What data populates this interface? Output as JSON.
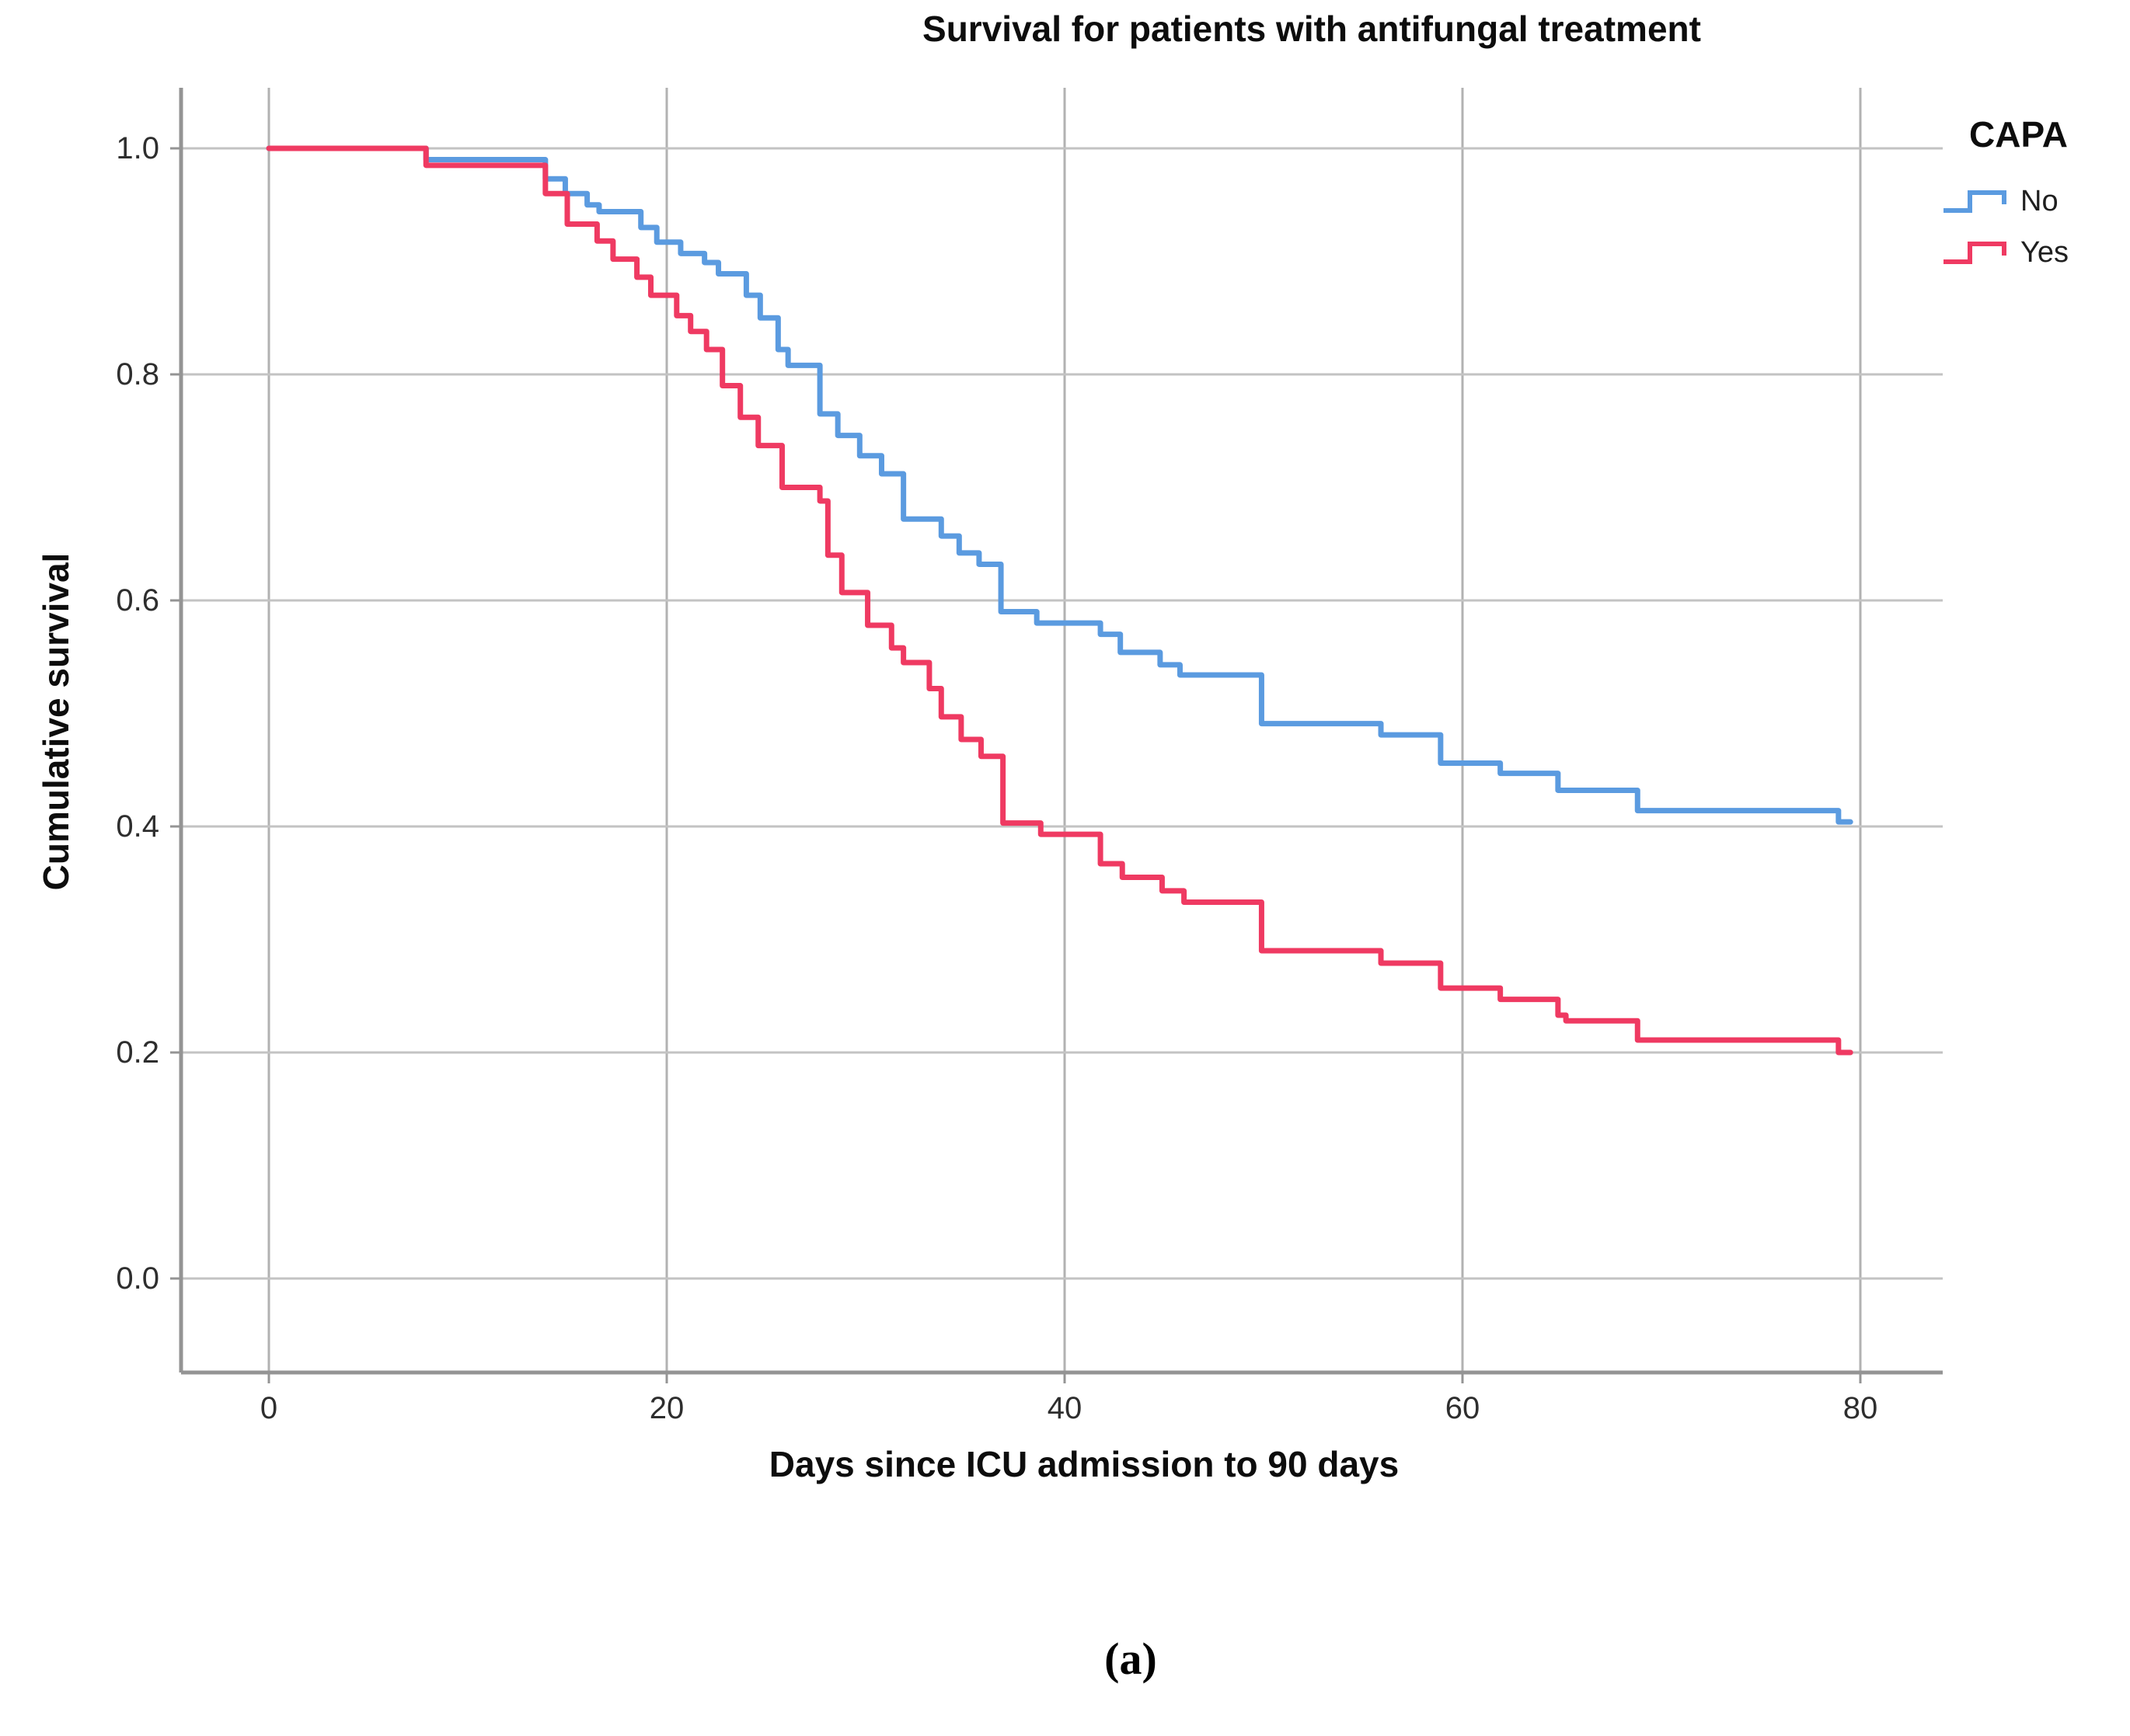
{
  "figure": {
    "caption": "(a)"
  },
  "chart_data": {
    "type": "line",
    "subtype": "kaplan-meier-step",
    "title": "Survival for patients with antifungal treatment",
    "xlabel": "Days since ICU admission to 90 days",
    "ylabel": "Cumulative survival",
    "xlim": [
      -4.4,
      84.2
    ],
    "ylim": [
      -0.083,
      1.055
    ],
    "xticks": [
      0,
      20,
      40,
      60,
      80
    ],
    "yticks": [
      1.0,
      0.8,
      0.6,
      0.4,
      0.2,
      0.0
    ],
    "grid": true,
    "curve_end_day": 79.5,
    "legend": {
      "title": "CAPA",
      "position": "outside-top-right"
    },
    "series": [
      {
        "name": "No",
        "color": "#5B9BE0",
        "points": [
          [
            0,
            1.0
          ],
          [
            7.9,
            0.99
          ],
          [
            13.9,
            0.973
          ],
          [
            14.9,
            0.96
          ],
          [
            16.0,
            0.95
          ],
          [
            16.6,
            0.944
          ],
          [
            18.7,
            0.93
          ],
          [
            19.5,
            0.917
          ],
          [
            20.7,
            0.907
          ],
          [
            21.9,
            0.899
          ],
          [
            22.6,
            0.889
          ],
          [
            24.0,
            0.87
          ],
          [
            24.7,
            0.85
          ],
          [
            25.6,
            0.822
          ],
          [
            26.1,
            0.808
          ],
          [
            27.7,
            0.765
          ],
          [
            28.6,
            0.746
          ],
          [
            29.7,
            0.728
          ],
          [
            30.8,
            0.712
          ],
          [
            31.9,
            0.672
          ],
          [
            33.8,
            0.657
          ],
          [
            34.7,
            0.642
          ],
          [
            35.7,
            0.632
          ],
          [
            36.8,
            0.59
          ],
          [
            38.6,
            0.58
          ],
          [
            41.8,
            0.57
          ],
          [
            42.8,
            0.554
          ],
          [
            44.8,
            0.543
          ],
          [
            45.8,
            0.534
          ],
          [
            49.9,
            0.491
          ],
          [
            55.9,
            0.481
          ],
          [
            58.9,
            0.456
          ],
          [
            61.9,
            0.447
          ],
          [
            64.8,
            0.432
          ],
          [
            68.8,
            0.414
          ],
          [
            78.9,
            0.404
          ]
        ]
      },
      {
        "name": "Yes",
        "color": "#EF3A62",
        "points": [
          [
            0,
            1.0
          ],
          [
            7.9,
            0.985
          ],
          [
            13.9,
            0.96
          ],
          [
            15.0,
            0.933
          ],
          [
            16.5,
            0.918
          ],
          [
            17.3,
            0.902
          ],
          [
            18.5,
            0.886
          ],
          [
            19.2,
            0.87
          ],
          [
            20.5,
            0.852
          ],
          [
            21.2,
            0.838
          ],
          [
            22.0,
            0.822
          ],
          [
            22.8,
            0.79
          ],
          [
            23.7,
            0.762
          ],
          [
            24.6,
            0.737
          ],
          [
            25.8,
            0.7
          ],
          [
            27.7,
            0.688
          ],
          [
            28.1,
            0.64
          ],
          [
            28.8,
            0.607
          ],
          [
            30.1,
            0.578
          ],
          [
            31.3,
            0.558
          ],
          [
            31.9,
            0.545
          ],
          [
            33.2,
            0.522
          ],
          [
            33.8,
            0.497
          ],
          [
            34.8,
            0.477
          ],
          [
            35.8,
            0.462
          ],
          [
            36.9,
            0.403
          ],
          [
            38.8,
            0.393
          ],
          [
            41.8,
            0.367
          ],
          [
            42.9,
            0.355
          ],
          [
            44.9,
            0.343
          ],
          [
            46.0,
            0.333
          ],
          [
            49.9,
            0.29
          ],
          [
            55.9,
            0.279
          ],
          [
            58.9,
            0.257
          ],
          [
            61.9,
            0.247
          ],
          [
            64.8,
            0.233
          ],
          [
            65.2,
            0.228
          ],
          [
            68.8,
            0.211
          ],
          [
            78.9,
            0.2
          ]
        ]
      }
    ],
    "style_colors": {
      "grid_horizontal": "#c3c3c3",
      "grid_vertical": "#b2b2b2",
      "axis_border": "#949494",
      "tick_text": "#2e2e2e"
    }
  }
}
